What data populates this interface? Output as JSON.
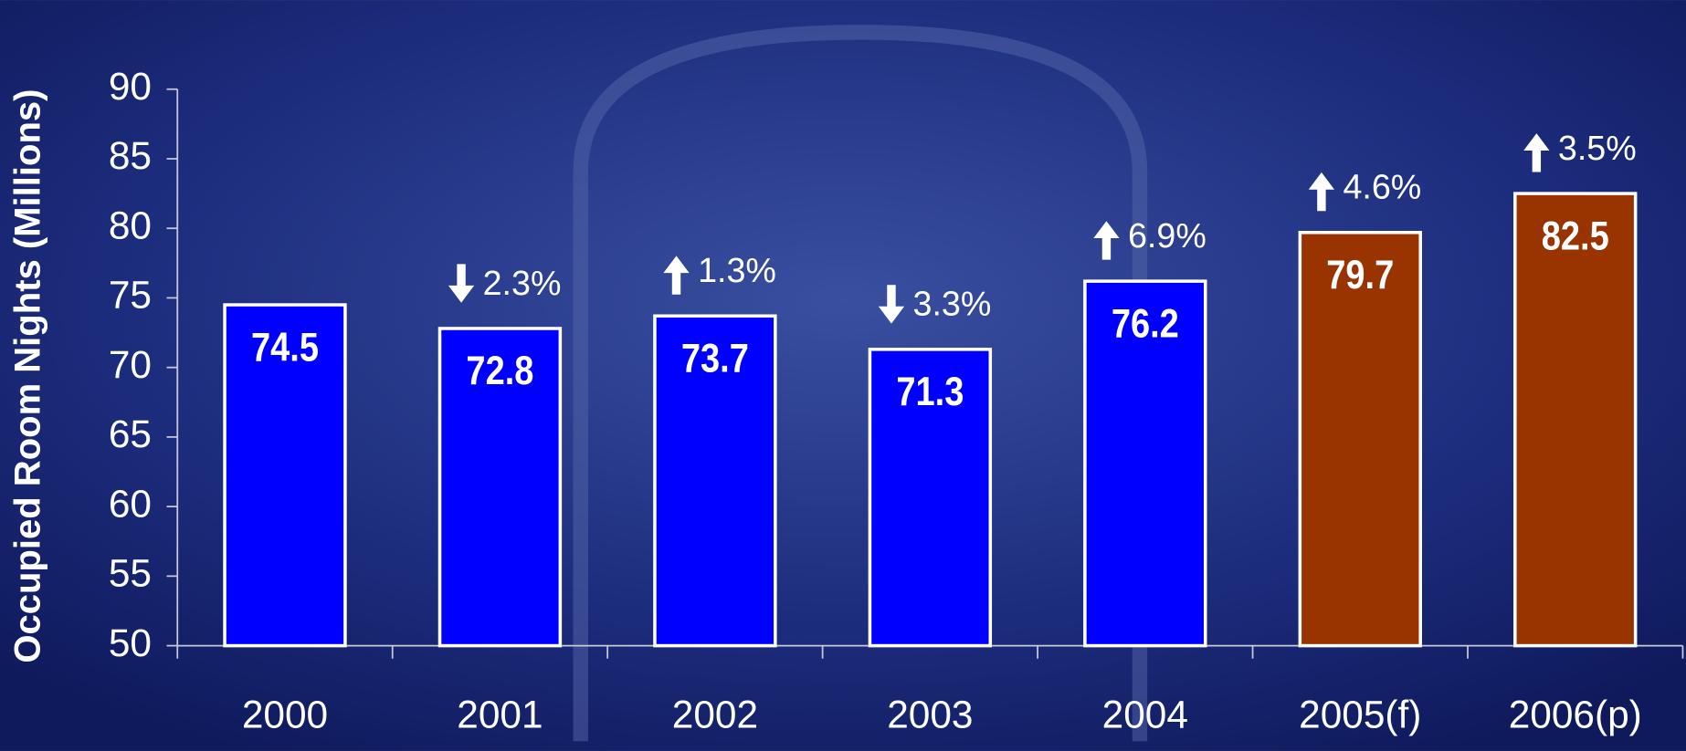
{
  "chart_data": {
    "type": "bar",
    "y_label": "Occupied Room Nights (Millions)",
    "categories": [
      "2000",
      "2001",
      "2002",
      "2003",
      "2004",
      "2005(f)",
      "2006(p)"
    ],
    "values": [
      74.5,
      72.8,
      73.7,
      71.3,
      76.2,
      79.7,
      82.5
    ],
    "colors": [
      "#0000ff",
      "#0000ff",
      "#0000ff",
      "#0000ff",
      "#0000ff",
      "#993300",
      "#993300"
    ],
    "change_values": [
      null,
      -2.3,
      1.3,
      -3.3,
      6.9,
      4.6,
      3.5
    ],
    "change_labels": [
      null,
      "2.3%",
      "1.3%",
      "3.3%",
      "6.9%",
      "4.6%",
      "3.5%"
    ],
    "ylim": [
      50,
      90
    ],
    "yticks": [
      50,
      55,
      60,
      65,
      70,
      75,
      80,
      85,
      90
    ]
  }
}
